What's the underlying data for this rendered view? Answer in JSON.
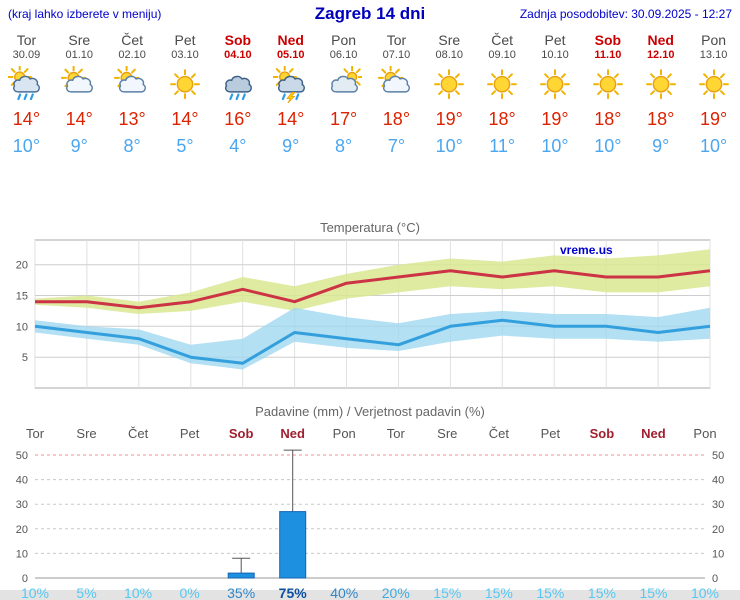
{
  "header": {
    "left_note": "(kraj lahko izberete v meniju)",
    "title": "Zagreb 14 dni",
    "updated": "Zadnja posodobitev: 30.09.2025 - 12:27"
  },
  "colors": {
    "accent_blue": "#0000CC",
    "weekend_red": "#CC0000",
    "high_temp": "#DD2200",
    "low_temp": "#4BA6F0",
    "bar_fill": "#1E90E0",
    "watermark": "#0000CC"
  },
  "days": [
    {
      "name": "Tor",
      "date": "30.09",
      "icon": "rain",
      "high": "14°",
      "low": "10°",
      "weekend": false
    },
    {
      "name": "Sre",
      "date": "01.10",
      "icon": "partly-cloudy",
      "high": "14°",
      "low": "9°",
      "weekend": false
    },
    {
      "name": "Čet",
      "date": "02.10",
      "icon": "partly-cloudy",
      "high": "13°",
      "low": "8°",
      "weekend": false
    },
    {
      "name": "Pet",
      "date": "03.10",
      "icon": "sun",
      "high": "14°",
      "low": "5°",
      "weekend": false
    },
    {
      "name": "Sob",
      "date": "04.10",
      "icon": "heavy-rain",
      "high": "16°",
      "low": "4°",
      "weekend": true
    },
    {
      "name": "Ned",
      "date": "05.10",
      "icon": "storm",
      "high": "14°",
      "low": "9°",
      "weekend": true
    },
    {
      "name": "Pon",
      "date": "06.10",
      "icon": "cloudy",
      "high": "17°",
      "low": "8°",
      "weekend": false
    },
    {
      "name": "Tor",
      "date": "07.10",
      "icon": "partly-cloudy",
      "high": "18°",
      "low": "7°",
      "weekend": false
    },
    {
      "name": "Sre",
      "date": "08.10",
      "icon": "sun",
      "high": "19°",
      "low": "10°",
      "weekend": false
    },
    {
      "name": "Čet",
      "date": "09.10",
      "icon": "sun",
      "high": "18°",
      "low": "11°",
      "weekend": false
    },
    {
      "name": "Pet",
      "date": "10.10",
      "icon": "sun",
      "high": "19°",
      "low": "10°",
      "weekend": false
    },
    {
      "name": "Sob",
      "date": "11.10",
      "icon": "sun",
      "high": "18°",
      "low": "10°",
      "weekend": true
    },
    {
      "name": "Ned",
      "date": "12.10",
      "icon": "sun",
      "high": "18°",
      "low": "9°",
      "weekend": true
    },
    {
      "name": "Pon",
      "date": "13.10",
      "icon": "sun",
      "high": "19°",
      "low": "10°",
      "weekend": false
    }
  ],
  "chart_data": [
    {
      "type": "line",
      "title": "Temperatura (°C)",
      "watermark": "vreme.us",
      "x_labels": [
        "Tor",
        "Sre",
        "Čet",
        "Pet",
        "Sob",
        "Ned",
        "Pon",
        "Tor",
        "Sre",
        "Čet",
        "Pet",
        "Sob",
        "Ned",
        "Pon"
      ],
      "ylim": [
        0,
        24
      ],
      "yticks": [
        5,
        10,
        15,
        20
      ],
      "series": [
        {
          "name": "max-temp",
          "values": [
            14,
            14,
            13,
            14,
            16,
            14,
            17,
            18,
            19,
            18,
            19,
            18,
            18,
            19
          ],
          "color": "#CC3344"
        },
        {
          "name": "min-temp",
          "values": [
            10,
            9,
            8,
            5,
            4,
            9,
            8,
            7,
            10,
            11,
            10,
            10,
            9,
            10
          ],
          "color": "#33A0DD"
        }
      ],
      "bands": [
        {
          "name": "max-range",
          "color": "#D8E890",
          "opacity": 0.85,
          "upper": [
            14.5,
            15,
            14,
            15.5,
            18,
            16.5,
            18.5,
            20,
            21,
            20.5,
            21.5,
            21,
            21.5,
            22.5
          ],
          "lower": [
            13.5,
            13,
            12,
            12.5,
            14,
            12.5,
            14.5,
            15.5,
            16.5,
            16,
            16.5,
            15.5,
            15.5,
            16.5
          ]
        },
        {
          "name": "min-range",
          "color": "#A0D8F0",
          "opacity": 0.8,
          "upper": [
            11,
            10,
            9.5,
            7,
            8,
            13,
            11.5,
            10.5,
            12,
            12.5,
            12,
            12,
            11.5,
            13
          ],
          "lower": [
            9,
            8,
            7,
            4,
            3,
            7.5,
            6.5,
            6,
            7.5,
            8.5,
            8,
            8,
            7.5,
            8
          ]
        }
      ]
    },
    {
      "type": "bar",
      "title": "Padavine (mm) / Verjetnost padavin (%)",
      "categories": [
        "Tor",
        "Sre",
        "Čet",
        "Pet",
        "Sob",
        "Ned",
        "Pon",
        "Tor",
        "Sre",
        "Čet",
        "Pet",
        "Sob",
        "Ned",
        "Pon"
      ],
      "weekend": [
        false,
        false,
        false,
        false,
        true,
        true,
        false,
        false,
        false,
        false,
        false,
        true,
        true,
        false
      ],
      "values": [
        0,
        0,
        0,
        0,
        2,
        27,
        0,
        0,
        0,
        0,
        0,
        0,
        0,
        0
      ],
      "whisker_high": [
        0,
        0,
        0,
        0,
        8,
        52,
        0,
        0,
        0,
        0,
        0,
        0,
        0,
        0
      ],
      "probabilities": [
        "10%",
        "5%",
        "10%",
        "0%",
        "35%",
        "75%",
        "40%",
        "20%",
        "15%",
        "15%",
        "15%",
        "15%",
        "15%",
        "10%"
      ],
      "prob_colors": [
        "#55C8F2",
        "#55C8F2",
        "#55C8F2",
        "#55C8F2",
        "#2F86C8",
        "#0A4FA0",
        "#2F86C8",
        "#3FAADE",
        "#55C8F2",
        "#55C8F2",
        "#55C8F2",
        "#55C8F2",
        "#55C8F2",
        "#55C8F2"
      ],
      "ylim": [
        0,
        52
      ],
      "yticks": [
        0,
        10,
        20,
        30,
        40,
        50
      ]
    }
  ]
}
